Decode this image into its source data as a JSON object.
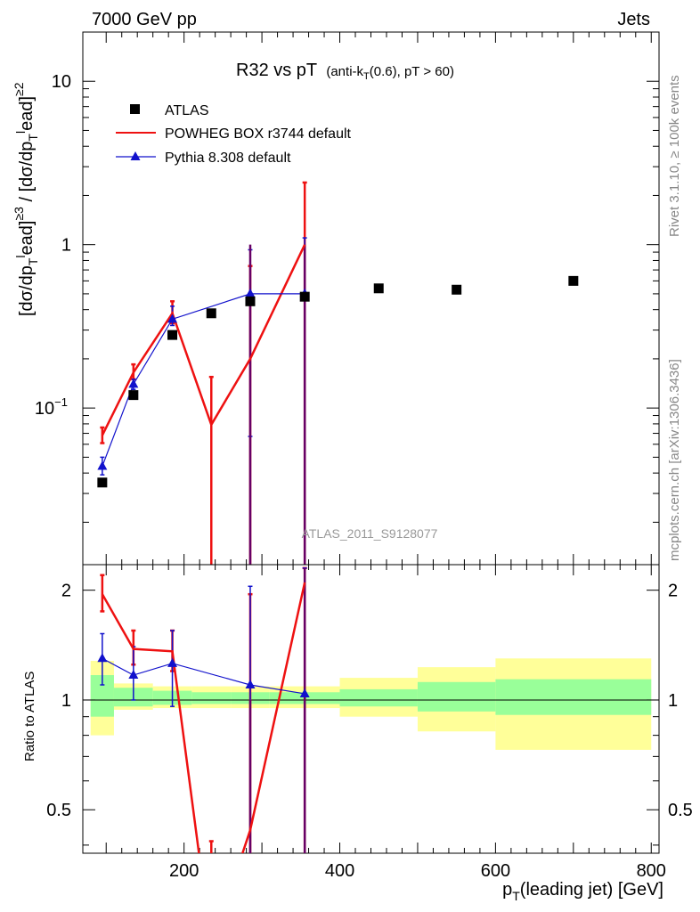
{
  "header": {
    "left": "7000 GeV pp",
    "right": "Jets"
  },
  "side_labels": {
    "top": "Rivet 3.1.10, ≥ 100k events",
    "bottom": "mcplots.cern.ch [arXiv:1306.3436]"
  },
  "watermark": "ATLAS_2011_S9128077",
  "colors": {
    "data": "#000000",
    "powheg": "#ee1111",
    "pythia": "#1111cc",
    "band_inner": "#99ff99",
    "band_outer": "#ffff99",
    "overlap": "#660066"
  },
  "chart_data": {
    "type": "line",
    "title": "R32 vs pT",
    "title_sub": "(anti-k_T(0.6), pT > 60)",
    "xlabel": "p_T(leading jet) [GeV]",
    "ylabel": "[dσ/dp_T^lead]^{≥3} / [dσ/dp_T^lead]^{≥2}",
    "ratio_ylabel": "Ratio to ATLAS",
    "xlim": [
      70,
      810
    ],
    "ylim": [
      0.011,
      20
    ],
    "yscale": "log",
    "ratio_ylim": [
      0.38,
      2.35
    ],
    "ratio_yscale": "log",
    "x_ticks": [
      "200",
      "400",
      "600",
      "800"
    ],
    "y_ticks": [
      "10",
      "1",
      "10^-1"
    ],
    "ratio_ticks": [
      "2",
      "1",
      "0.5"
    ],
    "legend_position": "top-left",
    "series": [
      {
        "name": "ATLAS",
        "style": "markers",
        "x": [
          95,
          135,
          185,
          235,
          285,
          355,
          450,
          550,
          700
        ],
        "y": [
          0.035,
          0.12,
          0.28,
          0.38,
          0.45,
          0.48,
          0.54,
          0.53,
          0.6
        ]
      },
      {
        "name": "POWHEG BOX r3744 default",
        "style": "line",
        "x": [
          95,
          135,
          185,
          235,
          285,
          355
        ],
        "y": [
          0.068,
          0.165,
          0.38,
          0.079,
          0.2,
          1.0
        ],
        "err_low": [
          0.061,
          0.15,
          0.33,
          0.005,
          0.005,
          0.005
        ],
        "err_high": [
          0.076,
          0.185,
          0.45,
          0.155,
          0.74,
          2.4
        ],
        "ratio": [
          1.95,
          1.38,
          1.36,
          0.21,
          0.44,
          2.1
        ],
        "ratio_err_low": [
          1.75,
          1.25,
          1.2,
          0.2,
          0.2,
          0.2
        ],
        "ratio_err_high": [
          2.2,
          1.55,
          1.55,
          0.41,
          1.95,
          2.3
        ]
      },
      {
        "name": "Pythia 8.308 default",
        "style": "line-triangles",
        "x": [
          95,
          135,
          185,
          285,
          355
        ],
        "y": [
          0.044,
          0.14,
          0.35,
          0.5,
          0.5
        ],
        "err_low": [
          0.039,
          0.13,
          0.32,
          0.067,
          0.005
        ],
        "err_high": [
          0.05,
          0.15,
          0.42,
          0.93,
          1.1
        ],
        "ratio": [
          1.3,
          1.17,
          1.26,
          1.1,
          1.04
        ],
        "ratio_err_low": [
          1.1,
          1.0,
          0.96,
          0.2,
          0.2
        ],
        "ratio_err_high": [
          1.52,
          1.4,
          1.55,
          2.05,
          2.3
        ]
      }
    ],
    "ratio_bands": {
      "edges": [
        80,
        110,
        160,
        210,
        260,
        310,
        400,
        500,
        600,
        800
      ],
      "inner": [
        [
          0.9,
          1.17
        ],
        [
          0.96,
          1.08
        ],
        [
          0.97,
          1.06
        ],
        [
          0.975,
          1.05
        ],
        [
          0.975,
          1.05
        ],
        [
          0.975,
          1.05
        ],
        [
          0.96,
          1.07
        ],
        [
          0.93,
          1.12
        ],
        [
          0.91,
          1.14
        ]
      ],
      "outer": [
        [
          0.8,
          1.28
        ],
        [
          0.94,
          1.11
        ],
        [
          0.95,
          1.09
        ],
        [
          0.95,
          1.09
        ],
        [
          0.95,
          1.09
        ],
        [
          0.95,
          1.09
        ],
        [
          0.9,
          1.15
        ],
        [
          0.82,
          1.23
        ],
        [
          0.73,
          1.3
        ]
      ]
    }
  }
}
